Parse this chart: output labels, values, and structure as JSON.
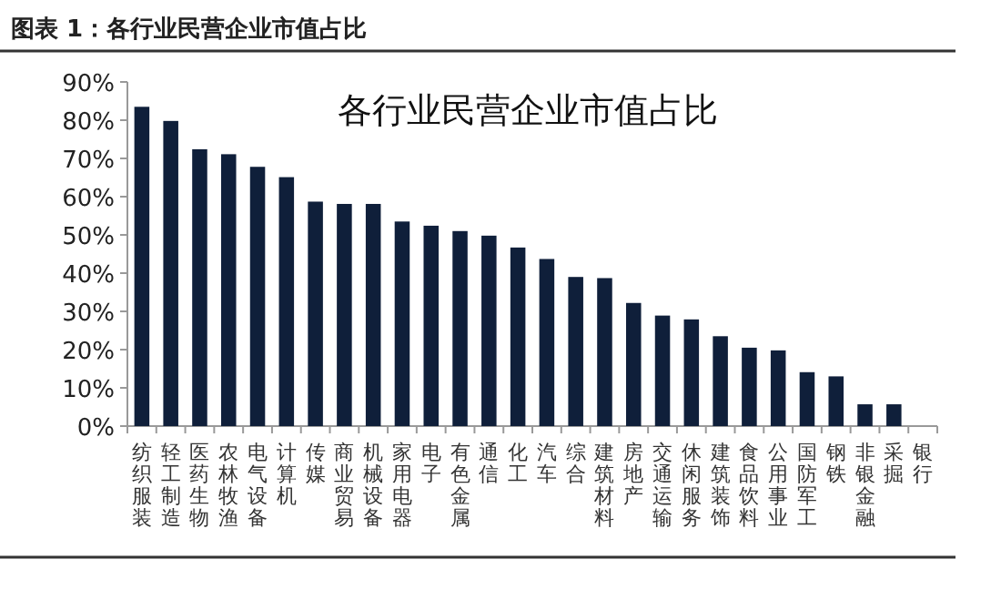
{
  "chart_data": {
    "type": "bar",
    "title": "图表 1：各行业民营企业市值占比",
    "subtitle": "各行业民营企业市值占比",
    "categories": [
      "纺织服装",
      "轻工制造",
      "医药生物",
      "农林牧渔",
      "电气设备",
      "计算机",
      "传媒",
      "商业贸易",
      "机械设备",
      "家用电器",
      "电子",
      "有色金属",
      "通信",
      "化工",
      "汽车",
      "综合",
      "建筑材料",
      "房地产",
      "交通运输",
      "休闲服务",
      "建筑装饰",
      "食品饮料",
      "公用事业",
      "国防军工",
      "钢铁",
      "非银金融",
      "采掘",
      "银行"
    ],
    "values": [
      83.5,
      79.8,
      72.4,
      71.1,
      67.8,
      65.1,
      58.7,
      58.1,
      58.1,
      53.5,
      52.4,
      51.0,
      49.8,
      46.7,
      43.7,
      39.0,
      38.7,
      32.2,
      28.9,
      27.9,
      23.5,
      20.5,
      19.8,
      14.1,
      13.0,
      5.7,
      5.7,
      0
    ],
    "color": "#0f1f3a",
    "ylim": [
      0,
      90
    ],
    "yticks": [
      {
        "value": 0,
        "label": "0%"
      },
      {
        "value": 10,
        "label": "10%"
      },
      {
        "value": 20,
        "label": "20%"
      },
      {
        "value": 30,
        "label": "30%"
      },
      {
        "value": 40,
        "label": "40%"
      },
      {
        "value": 50,
        "label": "50%"
      },
      {
        "value": 60,
        "label": "60%"
      },
      {
        "value": 70,
        "label": "70%"
      },
      {
        "value": 80,
        "label": "80%"
      },
      {
        "value": 90,
        "label": "90%"
      }
    ]
  }
}
